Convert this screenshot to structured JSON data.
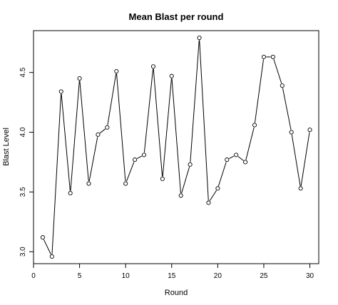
{
  "chart_data": {
    "type": "line",
    "title": "Mean Blast per round",
    "xlabel": "Round",
    "ylabel": "Blast Level",
    "x": [
      1,
      2,
      3,
      4,
      5,
      6,
      7,
      8,
      9,
      10,
      11,
      12,
      13,
      14,
      15,
      16,
      17,
      18,
      19,
      20,
      21,
      22,
      23,
      24,
      25,
      26,
      27,
      28,
      29,
      30
    ],
    "series": [
      {
        "values": [
          3.12,
          2.96,
          4.34,
          3.49,
          4.45,
          3.57,
          3.98,
          4.04,
          4.51,
          3.57,
          3.77,
          3.81,
          4.55,
          3.61,
          4.47,
          3.47,
          3.73,
          4.79,
          3.41,
          3.53,
          3.77,
          3.81,
          3.75,
          4.06,
          4.63,
          4.63,
          4.39,
          4.0,
          3.53,
          4.02
        ]
      }
    ],
    "xlim": [
      0,
      30.5
    ],
    "ylim": [
      2.9,
      4.85
    ],
    "xticks": [
      0,
      5,
      10,
      15,
      20,
      25,
      30
    ],
    "yticks": [
      3.0,
      3.5,
      4.0,
      4.5
    ],
    "ytick_labels": [
      "3.0",
      "3.5",
      "4.0",
      "4.5"
    ],
    "marker": "open-circle",
    "grid": false,
    "legend": "none",
    "line_color": "#000000"
  }
}
